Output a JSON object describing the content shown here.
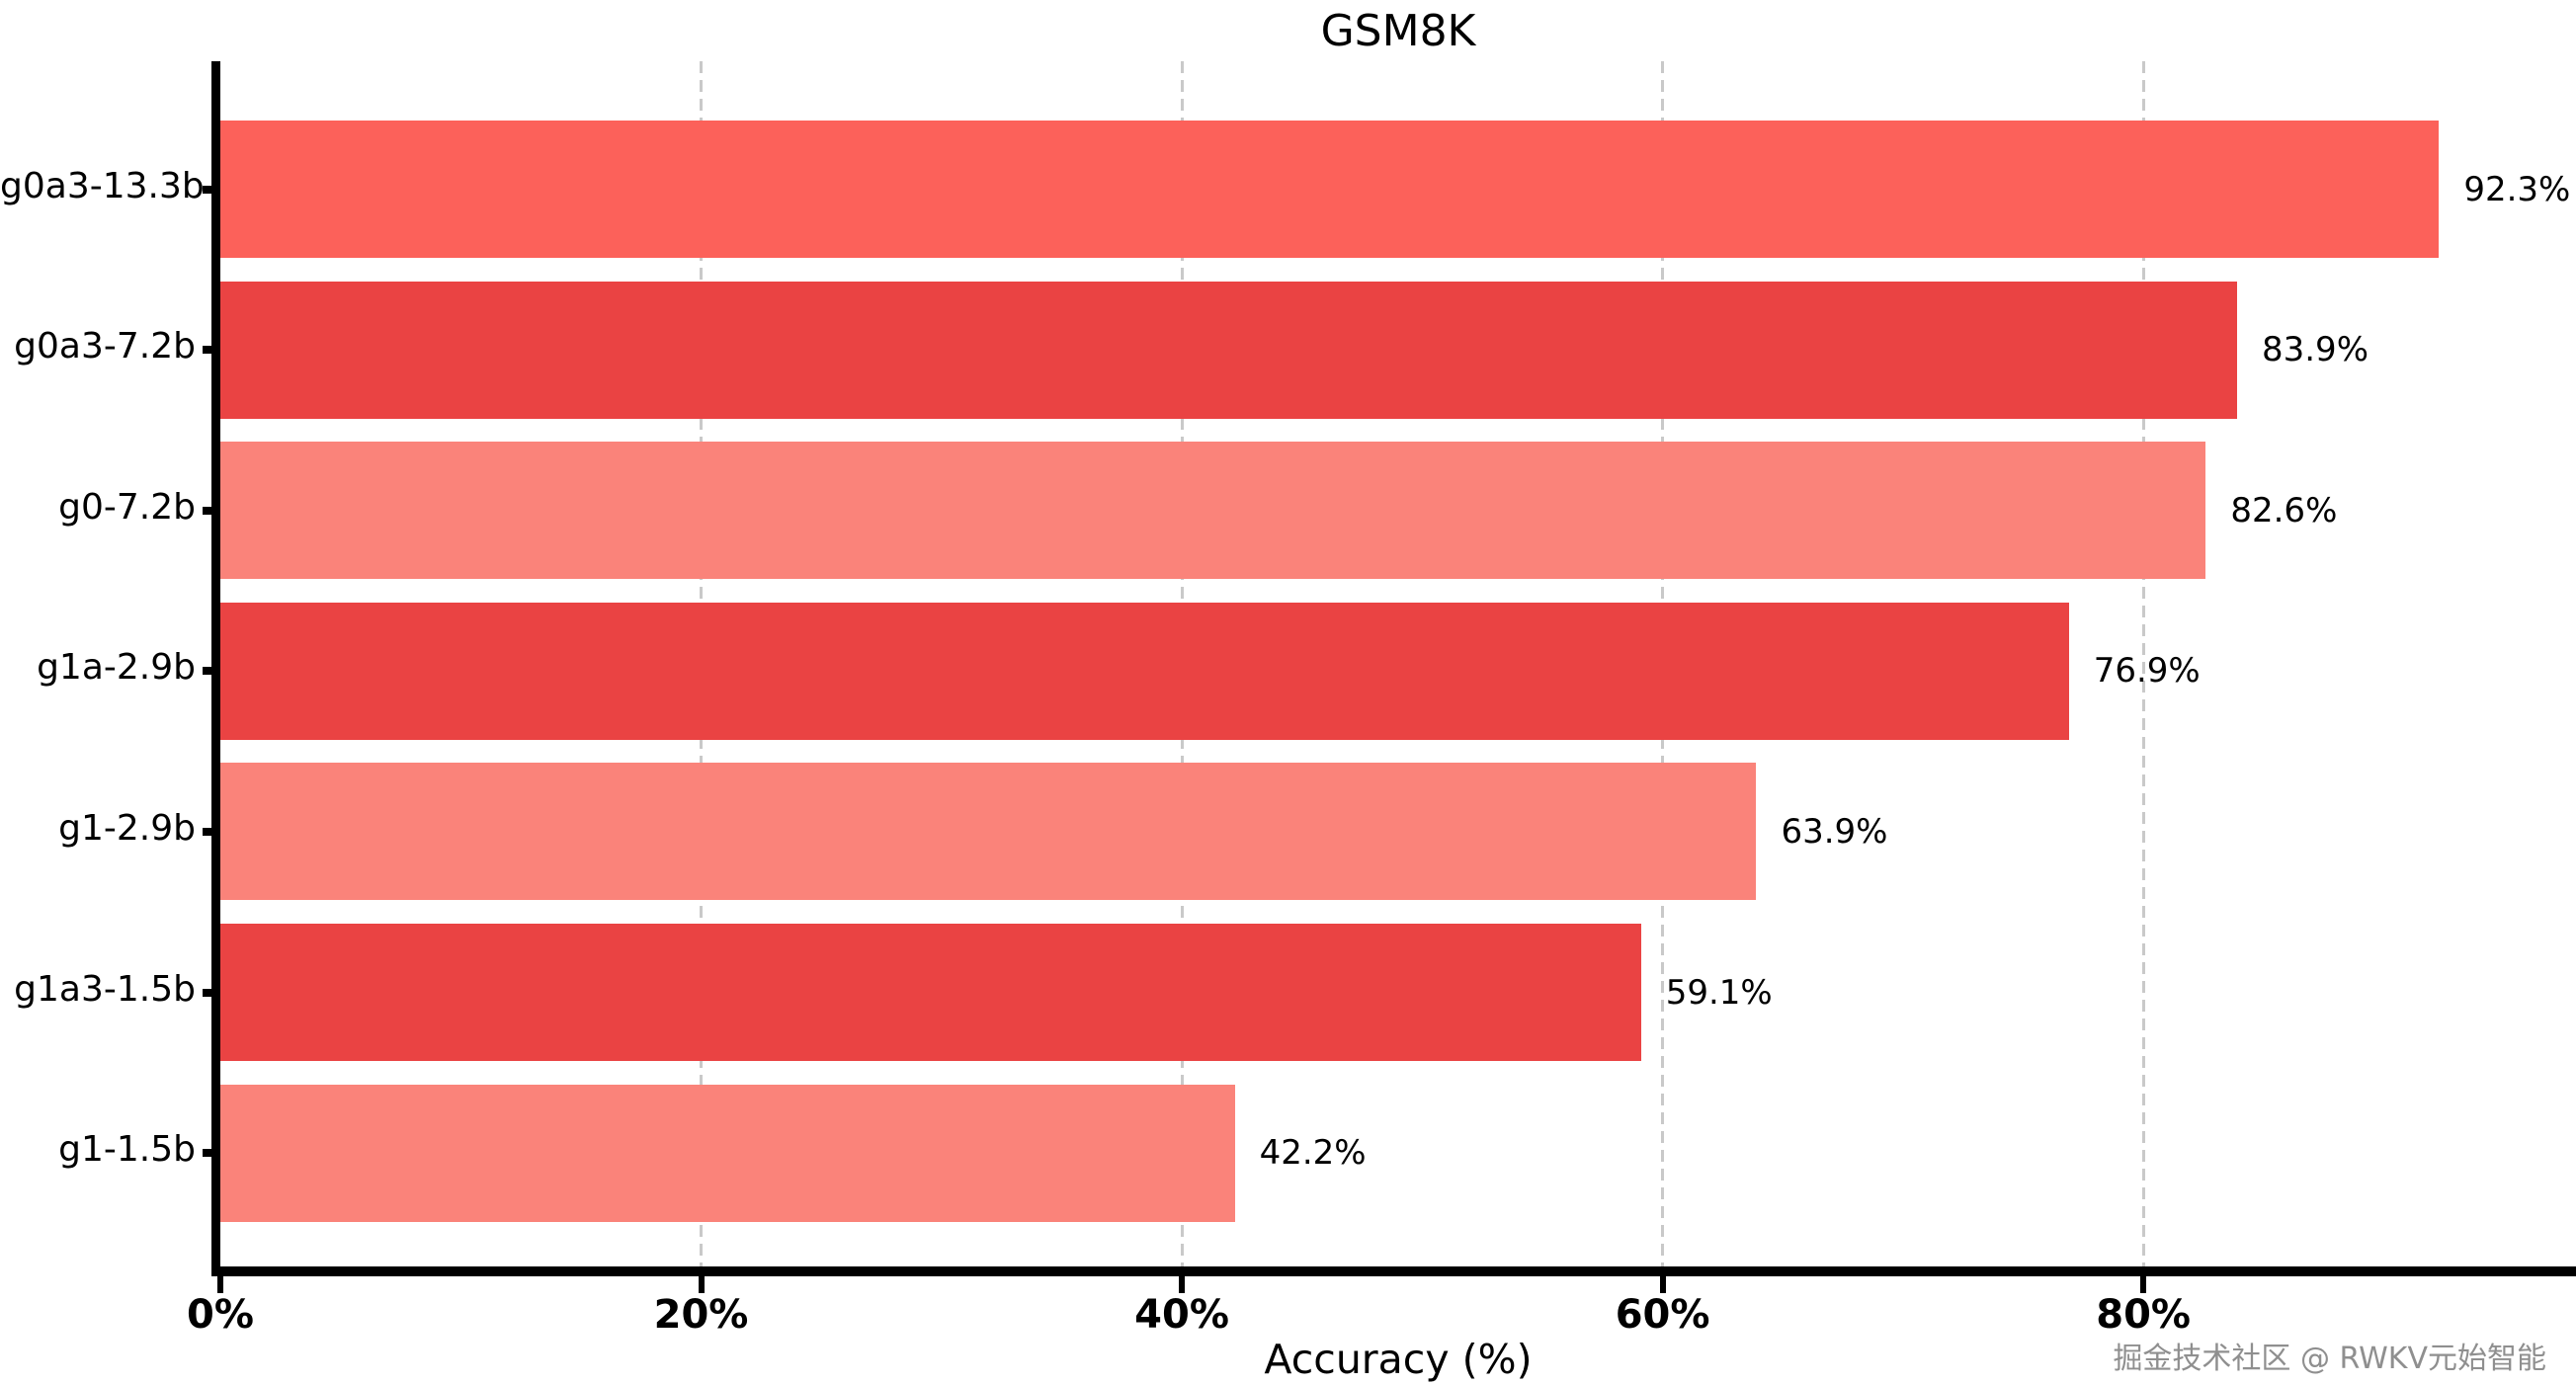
{
  "watermark": "掘金技术社区 @ RWKV元始智能",
  "chart_data": {
    "type": "bar",
    "orientation": "horizontal",
    "title": "GSM8K",
    "xlabel": "Accuracy (%)",
    "ylabel": "",
    "categories": [
      "g0a3-13.3b",
      "g0a3-7.2b",
      "g0-7.2b",
      "g1a-2.9b",
      "g1-2.9b",
      "g1a3-1.5b",
      "g1-1.5b"
    ],
    "values": [
      92.3,
      83.9,
      82.6,
      76.9,
      63.9,
      59.1,
      42.2
    ],
    "value_labels": [
      "92.3%",
      "83.9%",
      "82.6%",
      "76.9%",
      "63.9%",
      "59.1%",
      "42.2%"
    ],
    "bar_colors": [
      "#FC615A",
      "#EA4343",
      "#FA837A",
      "#EA4343",
      "#FA837A",
      "#EA4343",
      "#FA837A"
    ],
    "xlim": [
      0,
      98
    ],
    "x_ticks": [
      {
        "value": 0,
        "label": "0%"
      },
      {
        "value": 20,
        "label": "20%"
      },
      {
        "value": 40,
        "label": "40%"
      },
      {
        "value": 60,
        "label": "60%"
      },
      {
        "value": 80,
        "label": "80%"
      }
    ],
    "grid": {
      "axis": "x",
      "style": "dashed",
      "color": "#c9c9c9",
      "gridline_values": [
        20,
        40,
        60,
        80
      ]
    },
    "legend": "none",
    "colors": {
      "axis": "#000000",
      "text": "#000000",
      "background": "#ffffff",
      "watermark": "#8f8f8f"
    }
  }
}
